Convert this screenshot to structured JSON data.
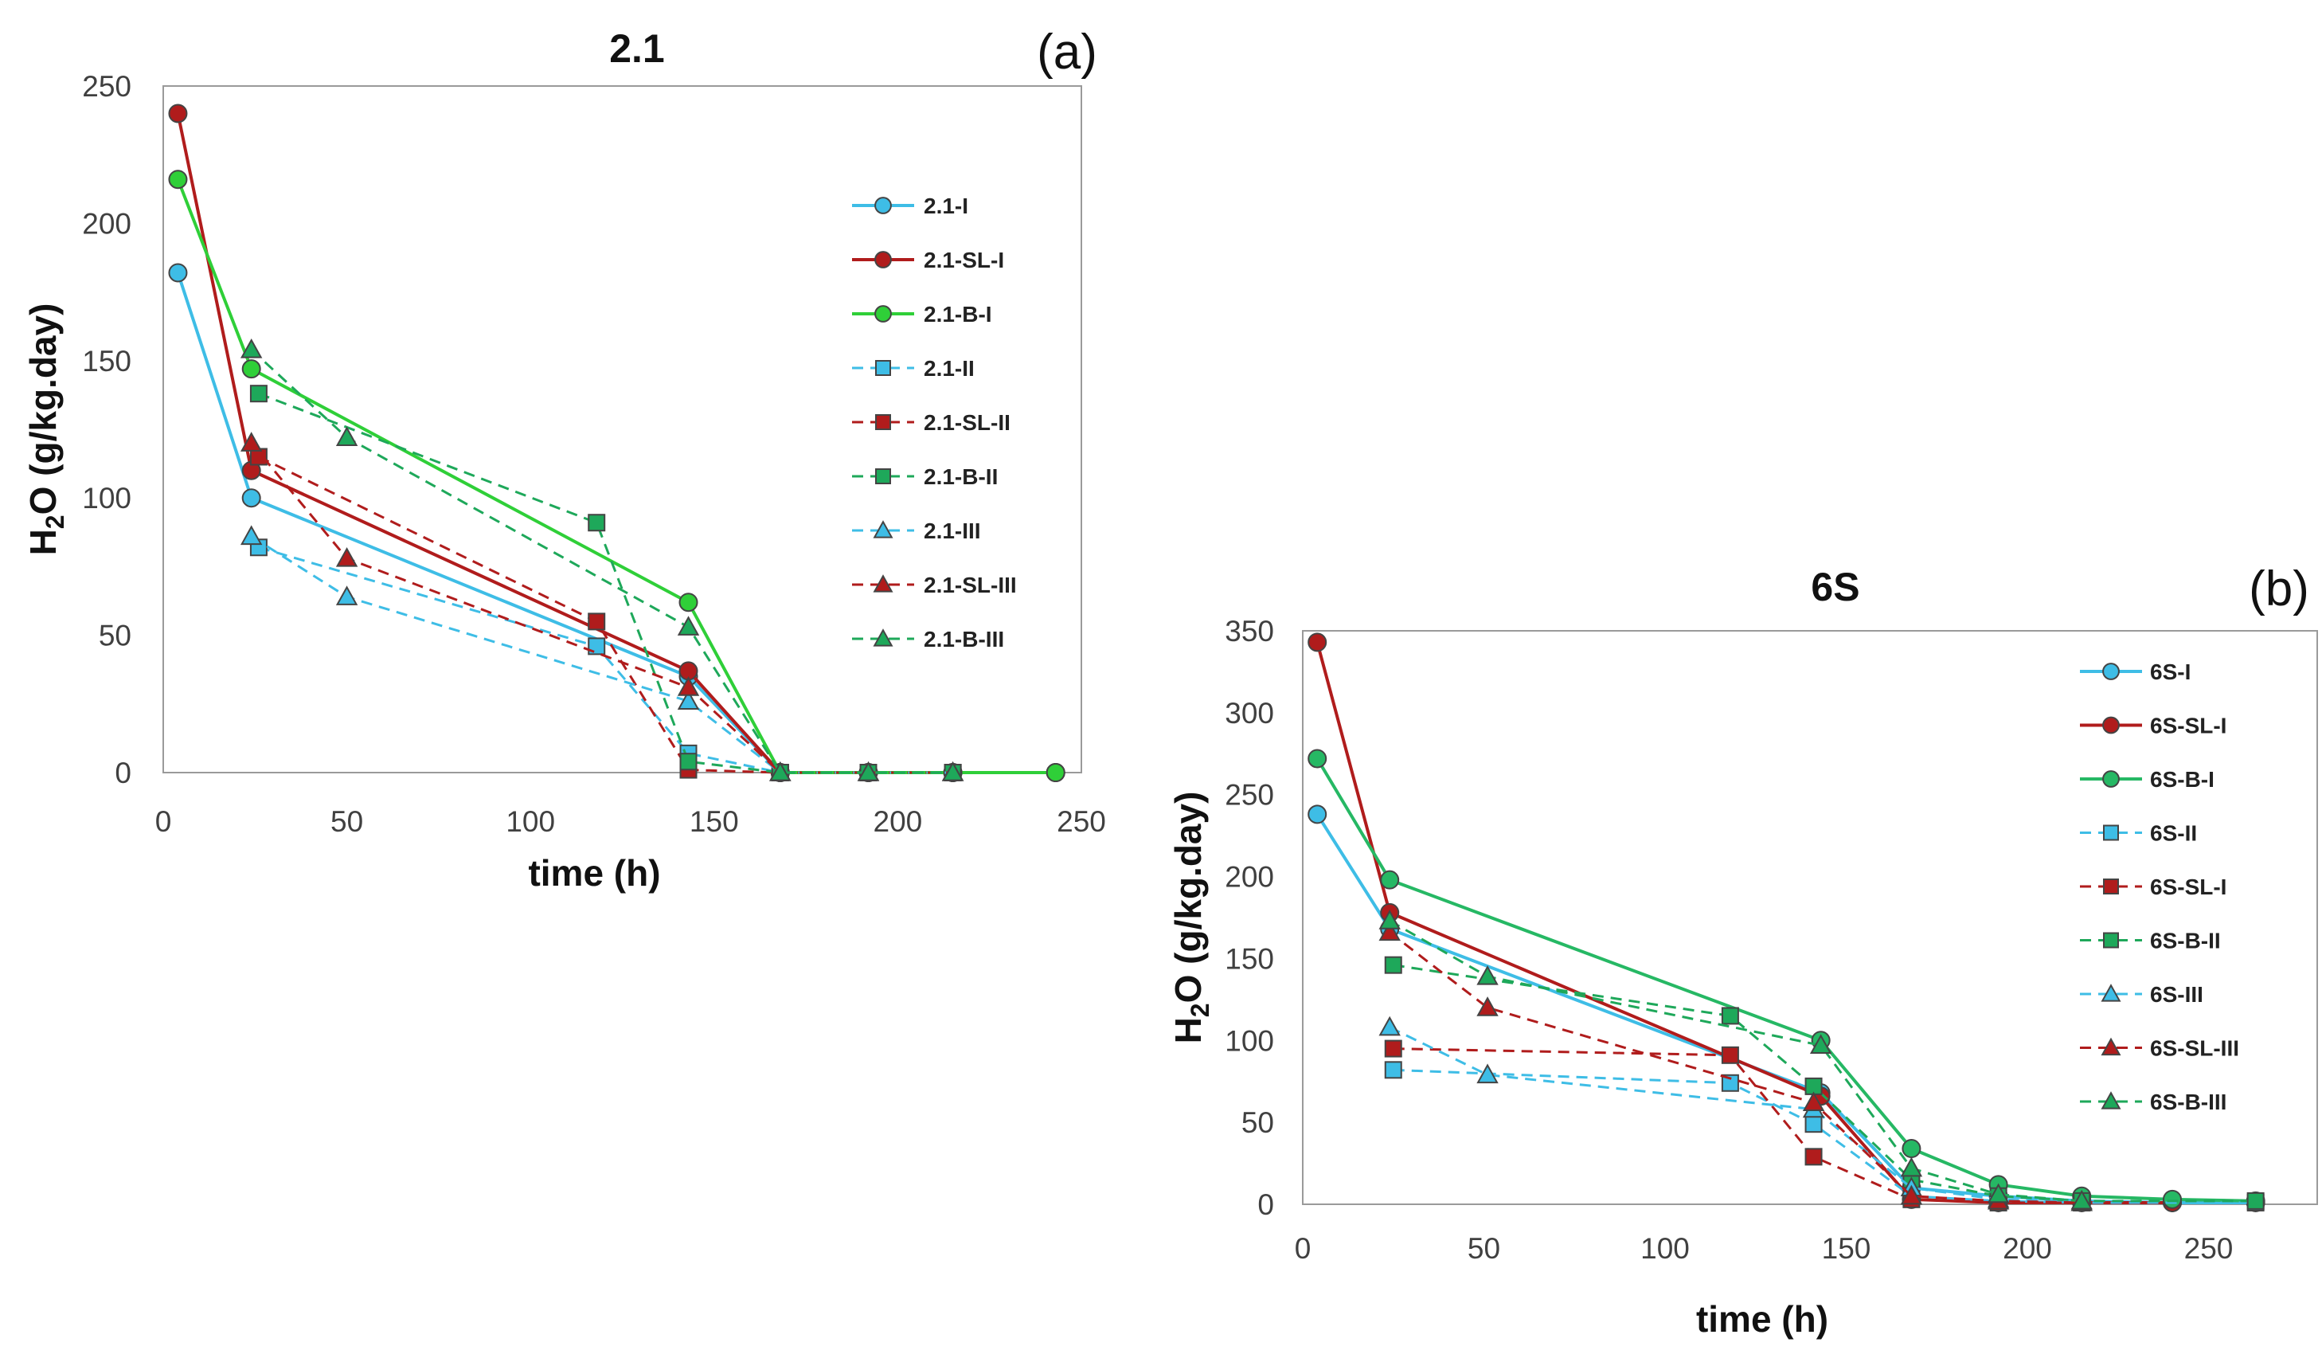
{
  "colors": {
    "cyan": "#3ebde6",
    "red": "#b01c1c",
    "green_a": "#2fcf38",
    "green_b": "#26b864",
    "green_dash": "#1ea85a",
    "marker_edge": "#444444"
  },
  "panels": [
    {
      "id": "a",
      "label": "(a)",
      "title": "2.1"
    },
    {
      "id": "b",
      "label": "(b)",
      "title": "6S"
    }
  ],
  "chart_data": [
    {
      "type": "line",
      "panel": "a",
      "title": "2.1",
      "xlabel": "time (h)",
      "ylabel": "H2O (g/kg.day)",
      "ylabel_parts": {
        "main": "H",
        "sub": "2",
        "rest": "O (g/kg.day)"
      },
      "xlim": [
        0,
        250
      ],
      "ylim": [
        0,
        250
      ],
      "xticks": [
        0,
        50,
        100,
        150,
        200,
        250
      ],
      "yticks": [
        0,
        50,
        100,
        150,
        200,
        250
      ],
      "legend_position": "right",
      "series": [
        {
          "name": "2.1-I",
          "color": "cyan",
          "dash": false,
          "marker": "circle",
          "x": [
            4,
            24,
            143,
            168,
            192,
            215,
            243
          ],
          "y": [
            182,
            100,
            35,
            0,
            0,
            0,
            0
          ]
        },
        {
          "name": "2.1-SL-I",
          "color": "red",
          "dash": false,
          "marker": "circle",
          "x": [
            4,
            24,
            143,
            168,
            192,
            215,
            243
          ],
          "y": [
            240,
            110,
            37,
            0,
            0,
            0,
            0
          ]
        },
        {
          "name": "2.1-B-I",
          "color": "green_a",
          "dash": false,
          "marker": "circle",
          "x": [
            4,
            24,
            143,
            168,
            192,
            215,
            243
          ],
          "y": [
            216,
            147,
            62,
            0,
            0,
            0,
            0
          ]
        },
        {
          "name": "2.1-II",
          "color": "cyan",
          "dash": true,
          "marker": "square",
          "x": [
            26,
            118,
            143,
            168,
            192,
            215
          ],
          "y": [
            82,
            46,
            7,
            0,
            0,
            0
          ]
        },
        {
          "name": "2.1-SL-II",
          "color": "red",
          "dash": true,
          "marker": "square",
          "x": [
            26,
            118,
            143,
            168,
            192,
            215
          ],
          "y": [
            115,
            55,
            1,
            0,
            0,
            0
          ]
        },
        {
          "name": "2.1-B-II",
          "color": "green_dash",
          "dash": true,
          "marker": "square",
          "x": [
            26,
            118,
            143,
            168,
            192,
            215
          ],
          "y": [
            138,
            91,
            4,
            0,
            0,
            0
          ]
        },
        {
          "name": "2.1-III",
          "color": "cyan",
          "dash": true,
          "marker": "triangle",
          "x": [
            24,
            50,
            143,
            168,
            192,
            215
          ],
          "y": [
            86,
            64,
            26,
            0,
            0,
            0
          ]
        },
        {
          "name": "2.1-SL-III",
          "color": "red",
          "dash": true,
          "marker": "triangle",
          "x": [
            24,
            50,
            143,
            168,
            192,
            215
          ],
          "y": [
            120,
            78,
            31,
            0,
            0,
            0
          ]
        },
        {
          "name": "2.1-B-III",
          "color": "green_dash",
          "dash": true,
          "marker": "triangle",
          "x": [
            24,
            50,
            143,
            168,
            192,
            215
          ],
          "y": [
            154,
            122,
            53,
            0,
            0,
            0
          ]
        }
      ]
    },
    {
      "type": "line",
      "panel": "b",
      "title": "6S",
      "xlabel": "time (h)",
      "ylabel": "H2O (g/kg.day)",
      "ylabel_parts": {
        "main": "H",
        "sub": "2",
        "rest": "O (g/kg.day)"
      },
      "xlim": [
        0,
        280
      ],
      "ylim": [
        0,
        350
      ],
      "xticks": [
        0,
        50,
        100,
        150,
        200,
        250
      ],
      "yticks": [
        0,
        50,
        100,
        150,
        200,
        250,
        300,
        350
      ],
      "legend_position": "right",
      "series": [
        {
          "name": "6S-I",
          "color": "cyan",
          "dash": false,
          "marker": "circle",
          "x": [
            4,
            24,
            143,
            168,
            192,
            215,
            240,
            263
          ],
          "y": [
            238,
            168,
            68,
            10,
            5,
            2,
            1,
            1
          ]
        },
        {
          "name": "6S-SL-I",
          "color": "red",
          "dash": false,
          "marker": "circle",
          "x": [
            4,
            24,
            143,
            168,
            192,
            215,
            240
          ],
          "y": [
            343,
            178,
            66,
            3,
            1,
            1,
            1
          ]
        },
        {
          "name": "6S-B-I",
          "color": "green_b",
          "dash": false,
          "marker": "circle",
          "x": [
            4,
            24,
            143,
            168,
            192,
            215,
            240,
            263
          ],
          "y": [
            272,
            198,
            100,
            34,
            12,
            5,
            3,
            2
          ]
        },
        {
          "name": "6S-II",
          "color": "cyan",
          "dash": true,
          "marker": "square",
          "x": [
            25,
            118,
            141,
            168,
            192,
            215,
            263
          ],
          "y": [
            82,
            74,
            49,
            5,
            2,
            1,
            1
          ]
        },
        {
          "name": "6S-SL-I",
          "color": "red",
          "dash": true,
          "marker": "square",
          "x": [
            25,
            118,
            141,
            168,
            192,
            215
          ],
          "y": [
            95,
            91,
            29,
            3,
            1,
            1
          ]
        },
        {
          "name": "6S-B-II",
          "color": "green_dash",
          "dash": true,
          "marker": "square",
          "x": [
            25,
            118,
            141,
            168,
            192,
            215,
            263
          ],
          "y": [
            146,
            115,
            72,
            15,
            5,
            2,
            2
          ]
        },
        {
          "name": "6S-III",
          "color": "cyan",
          "dash": true,
          "marker": "triangle",
          "x": [
            24,
            51,
            141,
            168,
            192,
            215
          ],
          "y": [
            108,
            79,
            58,
            10,
            3,
            1
          ]
        },
        {
          "name": "6S-SL-III",
          "color": "red",
          "dash": true,
          "marker": "triangle",
          "x": [
            24,
            51,
            141,
            168,
            192,
            215
          ],
          "y": [
            166,
            120,
            62,
            5,
            2,
            1
          ]
        },
        {
          "name": "6S-B-III",
          "color": "green_dash",
          "dash": true,
          "marker": "triangle",
          "x": [
            24,
            51,
            143,
            168,
            192,
            215
          ],
          "y": [
            173,
            139,
            97,
            22,
            6,
            2
          ]
        }
      ]
    }
  ]
}
